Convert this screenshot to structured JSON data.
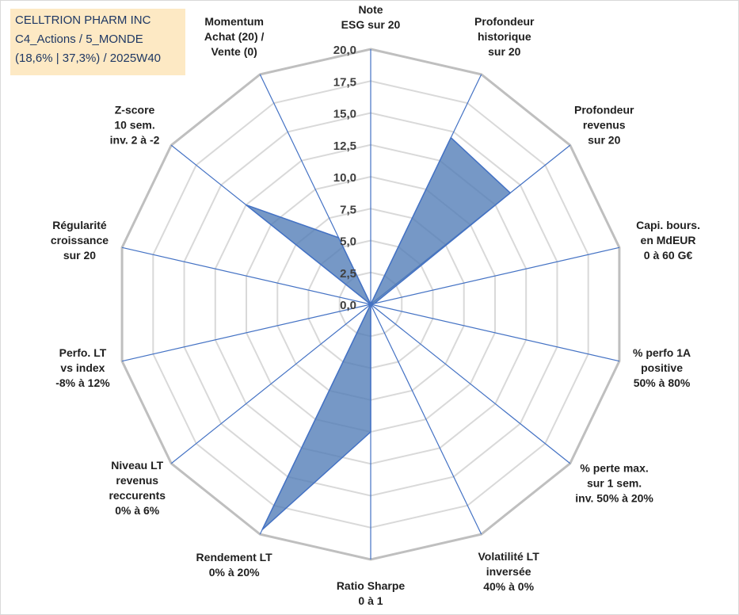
{
  "info": {
    "lines": [
      "CELLTRION PHARM INC",
      "C4_Actions / 5_MONDE",
      "(18,6% | 37,3%) / 2025W40"
    ]
  },
  "colors": {
    "fill": "#4f7bb6",
    "spoke": "#4472c4",
    "outer_ring": "#bfbfbf",
    "inner_ring": "#d9d9d9"
  },
  "chart_data": {
    "type": "radar",
    "title": "",
    "rlim": [
      0,
      20
    ],
    "r_ticks": [
      "0,0",
      "2,5",
      "5,0",
      "7,5",
      "10,0",
      "12,5",
      "15,0",
      "17,5",
      "20,0"
    ],
    "grid": true,
    "axes": [
      {
        "label": [
          "Note",
          "ESG sur 20"
        ],
        "value": 0
      },
      {
        "label": [
          "Profondeur",
          "historique",
          "sur 20"
        ],
        "value": 14.5
      },
      {
        "label": [
          "Profondeur",
          "revenus",
          "sur 20"
        ],
        "value": 14
      },
      {
        "label": [
          "Capi. bours.",
          "en MdEUR",
          "0 à 60 G€"
        ],
        "value": 0.3
      },
      {
        "label": [
          "% perfo 1A",
          "positive",
          "50% à 80%"
        ],
        "value": 0
      },
      {
        "label": [
          "% perte max.",
          "sur 1 sem.",
          "inv. 50% à 20%"
        ],
        "value": 0
      },
      {
        "label": [
          "Volatilité LT",
          "inversée",
          "40% à 0%"
        ],
        "value": 0
      },
      {
        "label": [
          "Ratio Sharpe",
          "0 à 1"
        ],
        "value": 10
      },
      {
        "label": [
          "Rendement LT",
          "0% à 20%"
        ],
        "value": 19.6
      },
      {
        "label": [
          "Niveau LT",
          "revenus",
          "reccurents",
          "0% à 6%"
        ],
        "value": 0
      },
      {
        "label": [
          "Perfo. LT",
          "vs index",
          "-8% à 12%"
        ],
        "value": 0
      },
      {
        "label": [
          "Régularité",
          "croissance",
          "sur 20"
        ],
        "value": 0
      },
      {
        "label": [
          "Z-score",
          "10 sem.",
          "inv. 2 à -2"
        ],
        "value": 12.5
      },
      {
        "label": [
          "Momentum",
          "Achat (20) /",
          "Vente (0)"
        ],
        "value": 5.8
      }
    ]
  }
}
